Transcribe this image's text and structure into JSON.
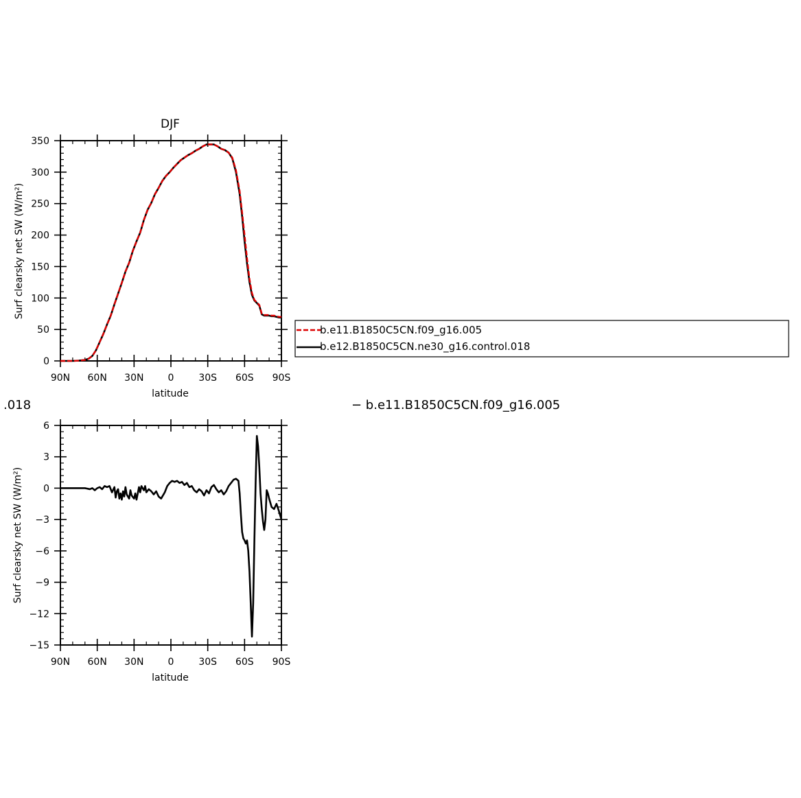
{
  "chart_data": [
    {
      "type": "line",
      "title": "DJF",
      "xlabel": "latitude",
      "ylabel": "Surf clearsky net SW (W/m²)",
      "xlim": [
        90,
        -90
      ],
      "ylim": [
        0,
        350
      ],
      "x_ticks": [
        90,
        60,
        30,
        0,
        -30,
        -60,
        -90
      ],
      "x_tick_labels": [
        "90N",
        "60N",
        "30N",
        "0",
        "30S",
        "60S",
        "90S"
      ],
      "y_ticks": [
        0,
        50,
        100,
        150,
        200,
        250,
        300,
        350
      ],
      "y_tick_labels": [
        "0",
        "50",
        "100",
        "150",
        "200",
        "250",
        "300",
        "350"
      ],
      "legend": {
        "placement": "right",
        "entries": [
          {
            "label": "b.e11.B1850C5CN.f09_g16.005",
            "color": "#dd0000",
            "style": "dashed"
          },
          {
            "label": "b.e12.B1850C5CN.ne30_g16.control.018",
            "color": "#000000",
            "style": "solid"
          }
        ]
      },
      "series": [
        {
          "name": "b.e12.B1850C5CN.ne30_g16.control.018",
          "color": "#000000",
          "style": "solid",
          "x": [
            90,
            85,
            80,
            75,
            70,
            67,
            64,
            61,
            58,
            55,
            52,
            49,
            46,
            43,
            40,
            37,
            34,
            31,
            28,
            25,
            22,
            19,
            16,
            13,
            10,
            7,
            4,
            1,
            -2,
            -5,
            -8,
            -11,
            -14,
            -17,
            -20,
            -23,
            -26,
            -29,
            -32,
            -35,
            -38,
            -41,
            -44,
            -47,
            -50,
            -53,
            -56,
            -58,
            -60,
            -62,
            -64,
            -66,
            -68,
            -70,
            -72,
            -74,
            -76,
            -78,
            -80,
            -82,
            -84,
            -86,
            -88,
            -90
          ],
          "y": [
            0,
            0,
            0,
            0.5,
            1.5,
            3.5,
            8,
            17,
            30,
            43,
            58,
            72,
            90,
            107,
            124,
            142,
            156,
            175,
            190,
            204,
            224,
            240,
            251,
            265,
            275,
            286,
            294,
            300,
            307,
            313,
            319,
            323,
            327,
            330,
            334,
            337,
            341,
            344,
            344,
            344,
            341,
            337,
            335,
            331,
            322,
            300,
            265,
            230,
            190,
            155,
            125,
            105,
            96,
            92,
            88,
            74,
            72,
            72,
            72,
            71,
            71,
            70,
            69,
            69
          ]
        },
        {
          "name": "b.e11.B1850C5CN.f09_g16.005",
          "color": "#dd0000",
          "style": "dashed",
          "x": [
            90,
            85,
            80,
            75,
            70,
            67,
            64,
            61,
            58,
            55,
            52,
            49,
            46,
            43,
            40,
            37,
            34,
            31,
            28,
            25,
            22,
            19,
            16,
            13,
            10,
            7,
            4,
            1,
            -2,
            -5,
            -8,
            -11,
            -14,
            -17,
            -20,
            -23,
            -26,
            -29,
            -32,
            -35,
            -38,
            -41,
            -44,
            -47,
            -50,
            -53,
            -56,
            -58,
            -60,
            -62,
            -64,
            -66,
            -68,
            -70,
            -72,
            -74,
            -76,
            -78,
            -80,
            -82,
            -84,
            -86,
            -88,
            -90
          ],
          "y": [
            0,
            0,
            0,
            0.5,
            1.5,
            3.5,
            8,
            17,
            30,
            43,
            58,
            72,
            90,
            107,
            124,
            142,
            156,
            175,
            190,
            204,
            224,
            240,
            251,
            265,
            275,
            286,
            294,
            300,
            307,
            313,
            319,
            323,
            327,
            330,
            334,
            337,
            341,
            344,
            344,
            344,
            341,
            337,
            335,
            331,
            323,
            303,
            270,
            236,
            200,
            163,
            130,
            108,
            97,
            93,
            89,
            75,
            73,
            73,
            73,
            72,
            72,
            71,
            70,
            70
          ]
        }
      ]
    },
    {
      "type": "line",
      "title": "",
      "xlabel": "latitude",
      "ylabel": "Surf clearsky net SW (W/m²)",
      "xlim": [
        90,
        -90
      ],
      "ylim": [
        -15,
        6
      ],
      "x_ticks": [
        90,
        60,
        30,
        0,
        -30,
        -60,
        -90
      ],
      "x_tick_labels": [
        "90N",
        "60N",
        "30N",
        "0",
        "30S",
        "60S",
        "90S"
      ],
      "y_ticks": [
        6,
        3,
        0,
        -3,
        -6,
        -9,
        -12,
        -15
      ],
      "y_tick_labels": [
        "6",
        "3",
        "0",
        "−3",
        "−6",
        "−9",
        "−12",
        "−15"
      ],
      "series": [
        {
          "color": "#000000",
          "style": "solid",
          "x": [
            90,
            80,
            70,
            66,
            64,
            62,
            60,
            58,
            56,
            54,
            52,
            50,
            48,
            46,
            45,
            44,
            43,
            42,
            41,
            40,
            39,
            38,
            37,
            36,
            34,
            33,
            32,
            30,
            29,
            28,
            26,
            25,
            24,
            22,
            21,
            20,
            18,
            16,
            14,
            12,
            10,
            8,
            6,
            5,
            3,
            1,
            -1,
            -3,
            -5,
            -7,
            -9,
            -11,
            -13,
            -15,
            -17,
            -19,
            -21,
            -23,
            -25,
            -27,
            -29,
            -31,
            -33,
            -35,
            -37,
            -39,
            -41,
            -43,
            -45,
            -47,
            -49,
            -51,
            -53,
            -55,
            -56,
            -57,
            -58,
            -59,
            -60,
            -61,
            -62,
            -63,
            -64,
            -65,
            -66,
            -67,
            -68,
            -69,
            -70,
            -71,
            -72,
            -73,
            -74,
            -75,
            -76,
            -77,
            -78,
            -79,
            -80,
            -82,
            -84,
            -86,
            -88,
            -90
          ],
          "y": [
            0,
            0,
            0,
            -0.1,
            0,
            -0.2,
            0,
            0.1,
            -0.1,
            0.2,
            0.1,
            0.2,
            -0.4,
            0.1,
            -0.9,
            -0.3,
            -0.1,
            -1.0,
            -0.5,
            -1.1,
            -0.3,
            -0.8,
            0.1,
            -0.6,
            -1.0,
            -0.2,
            -0.7,
            -1.0,
            -0.5,
            -1.1,
            0.1,
            -0.4,
            0.2,
            -0.2,
            0.2,
            -0.4,
            -0.1,
            -0.3,
            -0.6,
            -0.3,
            -0.8,
            -1.0,
            -0.6,
            -0.4,
            0.2,
            0.5,
            0.7,
            0.6,
            0.7,
            0.5,
            0.6,
            0.3,
            0.5,
            0.1,
            0.2,
            -0.2,
            -0.4,
            -0.1,
            -0.3,
            -0.7,
            -0.2,
            -0.5,
            0.1,
            0.3,
            -0.1,
            -0.4,
            -0.2,
            -0.6,
            -0.3,
            0.2,
            0.5,
            0.8,
            0.9,
            0.7,
            -0.5,
            -2.5,
            -4.2,
            -4.8,
            -5.0,
            -5.3,
            -5.0,
            -6.0,
            -8.0,
            -11.0,
            -14.2,
            -11.0,
            -5.0,
            0.5,
            5.0,
            4.0,
            2.0,
            -0.5,
            -2.0,
            -3.2,
            -4.0,
            -3.0,
            -0.2,
            -0.5,
            -1.0,
            -1.8,
            -2.0,
            -1.5,
            -2.2,
            -3.0
          ]
        }
      ]
    }
  ],
  "legend_labels": [
    "b.e11.B1850C5CN.f09_g16.005",
    "b.e12.B1850C5CN.ne30_g16.control.018"
  ],
  "overlay_texts": {
    "left_fragment": ".018",
    "right_fragment": "− b.e11.B1850C5CN.f09_g16.005"
  }
}
